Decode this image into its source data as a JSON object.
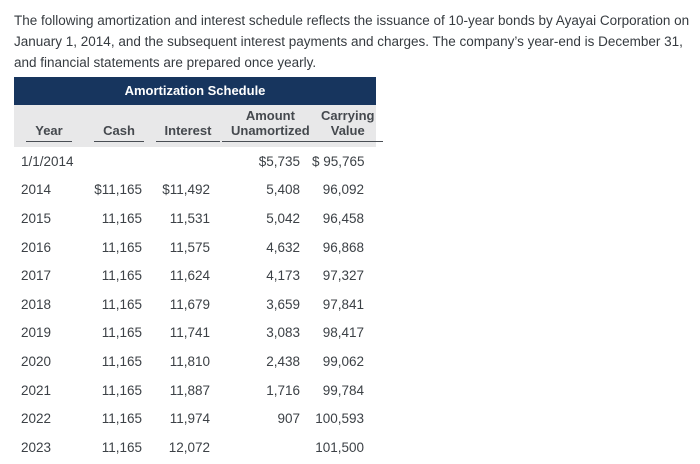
{
  "intro": {
    "text": "The following amortization and interest schedule reflects the issuance of 10-year bonds by Ayayai Corporation on January 1, 2014, and the subsequent interest payments and charges. The company’s year-end is December 31, and financial statements are prepared once yearly."
  },
  "table": {
    "title": "Amortization Schedule",
    "columns": [
      {
        "key": "year",
        "lines": [
          "Year"
        ]
      },
      {
        "key": "cash",
        "lines": [
          "Cash"
        ]
      },
      {
        "key": "interest",
        "lines": [
          "Interest"
        ]
      },
      {
        "key": "amount-unamortized",
        "lines": [
          "Amount",
          "Unamortized"
        ]
      },
      {
        "key": "carrying-value",
        "lines": [
          "Carrying",
          "Value"
        ]
      }
    ],
    "rows": [
      [
        "1/1/2014",
        "",
        "",
        "$5,735",
        "$ 95,765"
      ],
      [
        "2014",
        "$11,165",
        "$11,492",
        "5,408",
        "96,092"
      ],
      [
        "2015",
        "11,165",
        "11,531",
        "5,042",
        "96,458"
      ],
      [
        "2016",
        "11,165",
        "11,575",
        "4,632",
        "96,868"
      ],
      [
        "2017",
        "11,165",
        "11,624",
        "4,173",
        "97,327"
      ],
      [
        "2018",
        "11,165",
        "11,679",
        "3,659",
        "97,841"
      ],
      [
        "2019",
        "11,165",
        "11,741",
        "3,083",
        "98,417"
      ],
      [
        "2020",
        "11,165",
        "11,810",
        "2,438",
        "99,062"
      ],
      [
        "2021",
        "11,165",
        "11,887",
        "1,716",
        "99,784"
      ],
      [
        "2022",
        "11,165",
        "11,974",
        "907",
        "100,593"
      ],
      [
        "2023",
        "11,165",
        "12,072",
        "",
        "101,500"
      ]
    ],
    "colors": {
      "title_bar_bg": "#17355e",
      "title_bar_text": "#ffffff",
      "header_band_bg": "#e8e8e9",
      "body_text": "#3c4146",
      "header_underline": "#4a4e54"
    }
  }
}
